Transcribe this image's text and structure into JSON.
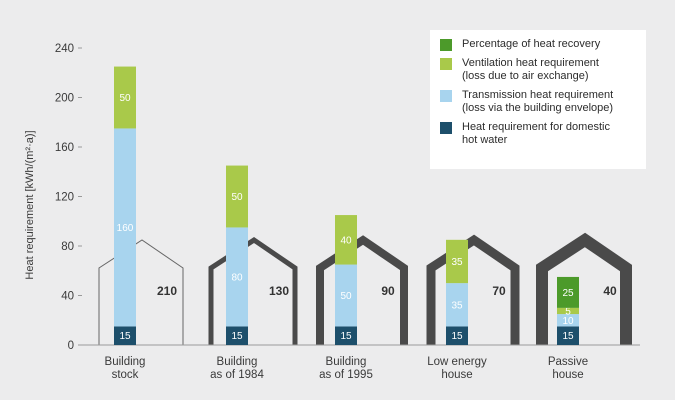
{
  "chart_data": {
    "type": "bar",
    "stacked": true,
    "ylabel": "Heat requirement [kWh/(m²·a)]",
    "ylim": [
      0,
      240
    ],
    "yticks": [
      0,
      40,
      80,
      120,
      160,
      200,
      240
    ],
    "categories": [
      "Building\nstock",
      "Building\nas of 1984",
      "Building\nas of 1995",
      "Low energy\nhouse",
      "Passive\nhouse"
    ],
    "series": [
      {
        "name": "Heat requirement for domestic hot water",
        "color": "#1d4f6b",
        "values": [
          15,
          15,
          15,
          15,
          15
        ]
      },
      {
        "name": "Transmission heat requirement (loss via the building envelope)",
        "color": "#a8d4ee",
        "values": [
          160,
          80,
          50,
          35,
          10
        ]
      },
      {
        "name": "Ventilation heat requirement (loss due to air exchange)",
        "color": "#a9c94a",
        "values": [
          50,
          50,
          40,
          35,
          5
        ]
      },
      {
        "name": "Percentage of heat recovery",
        "color": "#4c9a2a",
        "values": [
          0,
          0,
          0,
          0,
          25
        ]
      }
    ],
    "house_totals": [
      "210",
      "130",
      "90",
      "70",
      "40"
    ],
    "grid": false,
    "legend_position": "top-right"
  },
  "legend": [
    {
      "label": "Percentage of heat recovery",
      "color": "#4c9a2a"
    },
    {
      "label": "Ventilation heat requirement\n(loss due to air exchange)",
      "color": "#a9c94a"
    },
    {
      "label": "Transmission heat requirement\n(loss via the building envelope)",
      "color": "#a8d4ee"
    },
    {
      "label": "Heat requirement for domestic\nhot water",
      "color": "#1d4f6b"
    }
  ]
}
